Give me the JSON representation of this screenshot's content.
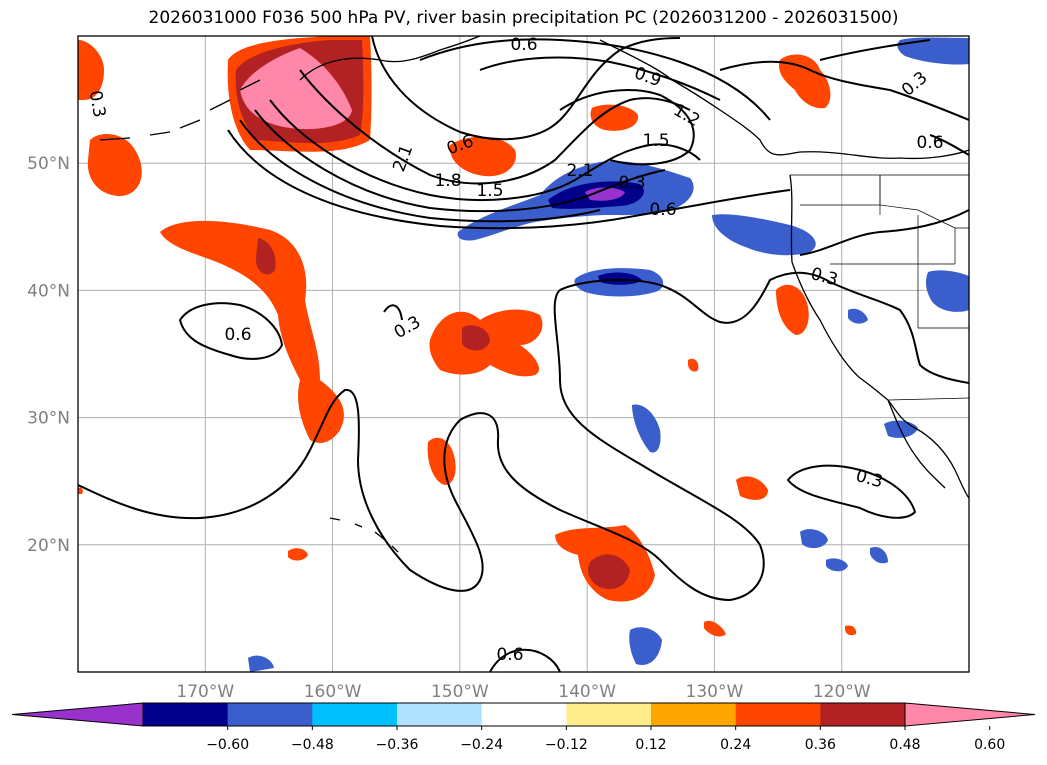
{
  "title": "2026031000 F036 500 hPa PV, river basin precipitation PC (2026031200 - 2026031500)",
  "map": {
    "projection": "PlateCarree",
    "lon_range": [
      -180,
      -110
    ],
    "lat_range": [
      10,
      60
    ],
    "lat_ticks": [
      {
        "value": 50,
        "label": "50°N"
      },
      {
        "value": 40,
        "label": "40°N"
      },
      {
        "value": 30,
        "label": "30°N"
      },
      {
        "value": 20,
        "label": "20°N"
      }
    ],
    "lon_ticks": [
      {
        "value": -170,
        "label": "170°W"
      },
      {
        "value": -160,
        "label": "160°W"
      },
      {
        "value": -150,
        "label": "150°W"
      },
      {
        "value": -140,
        "label": "140°W"
      },
      {
        "value": -130,
        "label": "130°W"
      },
      {
        "value": -120,
        "label": "120°W"
      }
    ],
    "gridlines": true,
    "contour_labels": [
      "0.3",
      "0.6",
      "0.9",
      "1.2",
      "1.5",
      "1.8",
      "2.1",
      "0.6",
      "0.3",
      "0.6",
      "0.6",
      "0.3",
      "0.3",
      "0.3",
      "0.6",
      "1.5",
      "2.1",
      "0.6",
      "0.3"
    ]
  },
  "colorbar": {
    "ticks": [
      "−0.60",
      "−0.48",
      "−0.36",
      "−0.24",
      "−0.12",
      "0.12",
      "0.24",
      "0.36",
      "0.48",
      "0.60"
    ],
    "colors": [
      "#9932cc",
      "#00008b",
      "#3a5fcd",
      "#00bfff",
      "#b0e2ff",
      "#ffffff",
      "#ffec8b",
      "#ffa500",
      "#ff4500",
      "#b22222",
      "#ff88aa"
    ],
    "extend": "both"
  }
}
